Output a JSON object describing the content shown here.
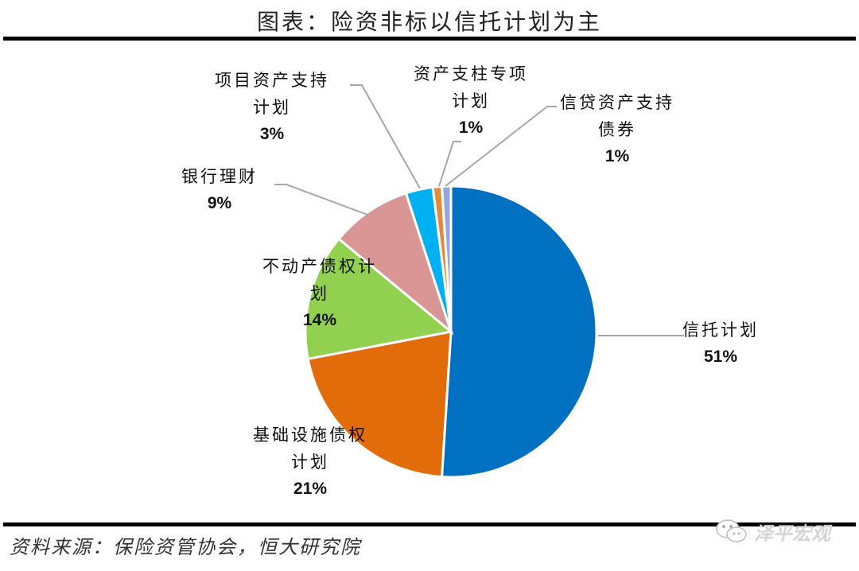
{
  "header": {
    "title": "图表：险资非标以信托计划为主"
  },
  "footer": {
    "source": "资料来源：保险资管协会，恒大研究院",
    "watermark": "泽平宏观"
  },
  "chart_data": {
    "type": "pie",
    "title": "图表：险资非标以信托计划为主",
    "start_angle": "12 o'clock, clockwise",
    "categories": [
      "信托计划",
      "基础设施债权计划",
      "不动产债权计划",
      "银行理财",
      "项目资产支持计划",
      "资产支柱专项计划",
      "信贷资产支持债券"
    ],
    "values": [
      51,
      21,
      14,
      9,
      3,
      1,
      1
    ],
    "unit": "%",
    "colors": [
      "#0070C0",
      "#E36C0A",
      "#92D050",
      "#D99694",
      "#00B0F0",
      "#E48A3C",
      "#95A9D8"
    ],
    "labels": [
      {
        "lines": [
          "信托计划"
        ],
        "pct": "51%"
      },
      {
        "lines": [
          "基础设施债权",
          "计划"
        ],
        "pct": "21%"
      },
      {
        "lines": [
          "不动产债权计",
          "划"
        ],
        "pct": "14%"
      },
      {
        "lines": [
          "银行理财"
        ],
        "pct": "9%"
      },
      {
        "lines": [
          "项目资产支持",
          "计划"
        ],
        "pct": "3%"
      },
      {
        "lines": [
          "资产支柱专项",
          "计划"
        ],
        "pct": "1%"
      },
      {
        "lines": [
          "信贷资产支持",
          "债券"
        ],
        "pct": "1%"
      }
    ],
    "legend": "none (data labels with leader lines)"
  }
}
